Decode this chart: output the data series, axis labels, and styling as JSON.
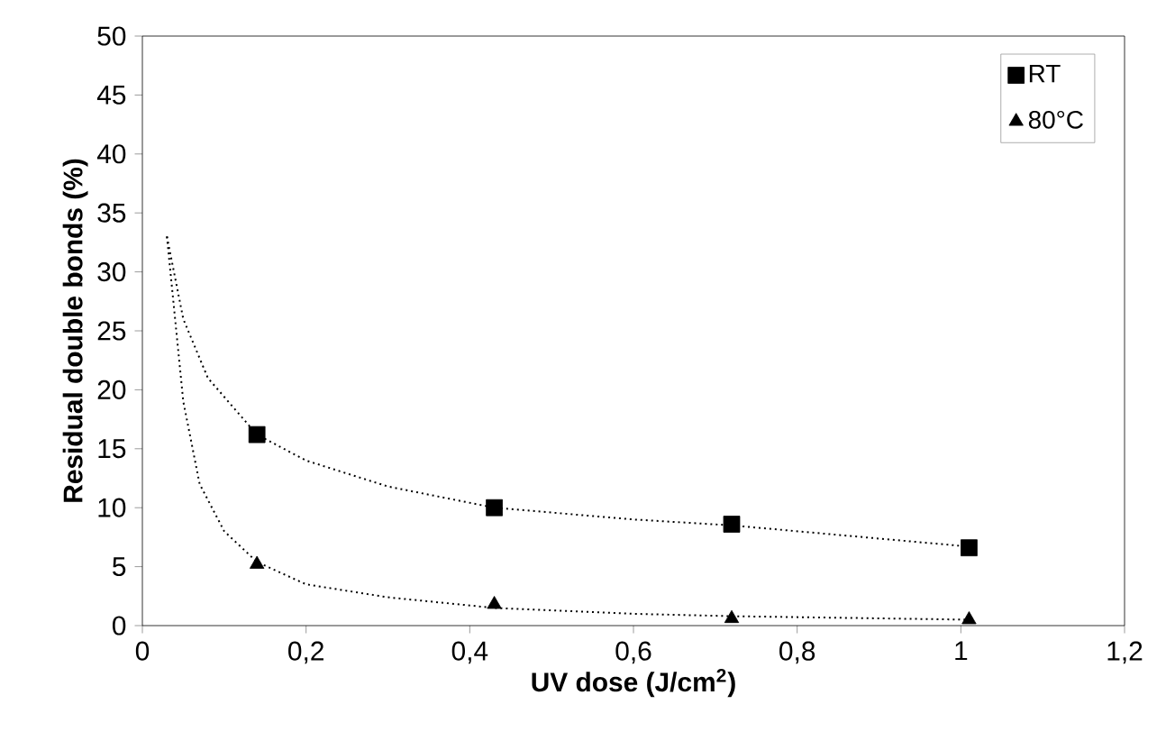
{
  "chart_data": {
    "type": "scatter",
    "xlabel": "UV dose (J/cm$^{2}$)",
    "ylabel": "Residual double bonds (%)",
    "xlim": [
      0,
      1.2
    ],
    "xticks": [
      0,
      {
        "value": 0.2,
        "label": "0,2"
      },
      {
        "value": 0.4,
        "label": "0,4"
      },
      {
        "value": 0.6,
        "label": "0,6"
      },
      {
        "value": 0.8,
        "label": "0,8"
      },
      1,
      {
        "value": 1.2,
        "label": "1,2"
      }
    ],
    "ylim": [
      0,
      50
    ],
    "yticks": [
      0,
      5,
      10,
      15,
      20,
      25,
      30,
      35,
      40,
      45,
      50
    ],
    "grid": false,
    "legend": "top right",
    "series": [
      {
        "name": "RT",
        "marker": "square",
        "color": "#000000",
        "x": [
          0.14,
          0.43,
          0.72,
          1.01
        ],
        "values": [
          16.2,
          10,
          8.6,
          6.6
        ]
      },
      {
        "name": "80°C",
        "marker": "triangle",
        "color": "#000000",
        "x": [
          0.14,
          0.43,
          0.72,
          1.01
        ],
        "values": [
          5.2,
          1.8,
          0.6,
          0.5
        ]
      },
      {
        "type": "line",
        "line_style": "dotted",
        "marker": "none",
        "color": "#000000",
        "x": [
          0.03,
          0.05,
          0.08,
          0.14,
          0.2,
          0.3,
          0.43,
          0.6,
          0.72,
          1.01
        ],
        "values": [
          33,
          26,
          21,
          16.2,
          14,
          11.8,
          10,
          9,
          8.5,
          6.7
        ]
      },
      {
        "type": "line",
        "line_style": "dotted",
        "marker": "none",
        "color": "#000000",
        "x": [
          0.03,
          0.04,
          0.05,
          0.07,
          0.1,
          0.14,
          0.2,
          0.3,
          0.43,
          0.6,
          0.72,
          1.01
        ],
        "values": [
          33,
          26,
          19,
          12,
          8,
          5.4,
          3.5,
          2.4,
          1.5,
          1,
          0.8,
          0.5
        ]
      }
    ]
  }
}
